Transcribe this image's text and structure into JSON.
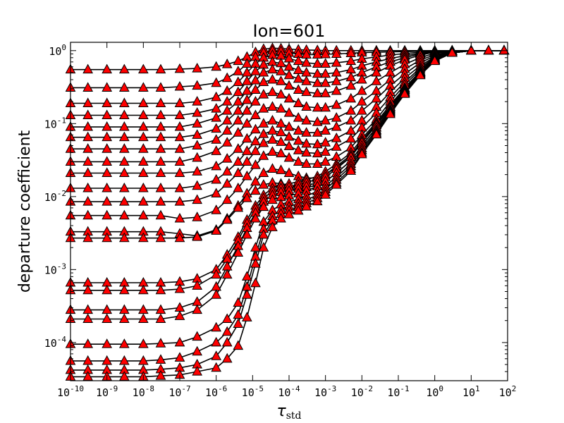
{
  "chart_data": {
    "type": "line",
    "title": "Ion=601",
    "xlabel": "τ",
    "xlabel_sub": "std",
    "ylabel": "departure coefficient",
    "xscale": "log",
    "yscale": "log",
    "xlim": [
      1e-10,
      100
    ],
    "ylim": [
      3e-05,
      1.3
    ],
    "x_tick_labels": [
      {
        "base": "10",
        "exp": "-10"
      },
      {
        "base": "10",
        "exp": "-9"
      },
      {
        "base": "10",
        "exp": "-8"
      },
      {
        "base": "10",
        "exp": "-7"
      },
      {
        "base": "10",
        "exp": "-6"
      },
      {
        "base": "10",
        "exp": "-5"
      },
      {
        "base": "10",
        "exp": "-4"
      },
      {
        "base": "10",
        "exp": "-3"
      },
      {
        "base": "10",
        "exp": "-2"
      },
      {
        "base": "10",
        "exp": "-1"
      },
      {
        "base": "10",
        "exp": "0"
      },
      {
        "base": "10",
        "exp": "1"
      },
      {
        "base": "10",
        "exp": "2"
      }
    ],
    "y_tick_labels": [
      {
        "base": "10",
        "exp": "0"
      },
      {
        "base": "10",
        "exp": "-1"
      },
      {
        "base": "10",
        "exp": "-2"
      },
      {
        "base": "10",
        "exp": "-3"
      },
      {
        "base": "10",
        "exp": "-4"
      }
    ],
    "grid": false,
    "legend": "none",
    "colors": {
      "marker_fill": "#ff0000",
      "line": "#000000"
    },
    "marker": "triangle",
    "x": [
      1e-10,
      3e-10,
      1e-09,
      3e-09,
      1e-08,
      3e-08,
      1e-07,
      3e-07,
      1e-06,
      2e-06,
      4e-06,
      7e-06,
      1.2e-05,
      2e-05,
      3.5e-05,
      6e-05,
      0.0001,
      0.00018,
      0.0003,
      0.0006,
      0.001,
      0.002,
      0.005,
      0.01,
      0.025,
      0.06,
      0.15,
      0.4,
      1,
      3,
      10,
      30,
      80
    ],
    "series": [
      {
        "values": [
          0.55,
          0.55,
          0.55,
          0.55,
          0.55,
          0.55,
          0.56,
          0.57,
          0.6,
          0.65,
          0.72,
          0.82,
          0.95,
          1.05,
          1.08,
          1.07,
          1.05,
          1.03,
          1.02,
          1.01,
          1.0,
          1.0,
          1.0,
          1.0,
          1.0,
          1.0,
          1.0,
          1.0,
          1.0,
          1.0,
          1.0,
          1.0,
          1.0
        ]
      },
      {
        "values": [
          0.31,
          0.31,
          0.31,
          0.31,
          0.31,
          0.31,
          0.32,
          0.33,
          0.36,
          0.42,
          0.52,
          0.66,
          0.82,
          0.95,
          1.0,
          0.98,
          0.93,
          0.9,
          0.88,
          0.88,
          0.89,
          0.9,
          0.92,
          0.94,
          0.95,
          0.96,
          0.97,
          0.98,
          0.99,
          1.0,
          1.0,
          1.0,
          1.0
        ]
      },
      {
        "values": [
          0.19,
          0.19,
          0.19,
          0.19,
          0.19,
          0.19,
          0.19,
          0.2,
          0.23,
          0.28,
          0.37,
          0.5,
          0.66,
          0.8,
          0.87,
          0.85,
          0.78,
          0.72,
          0.68,
          0.66,
          0.66,
          0.68,
          0.72,
          0.77,
          0.82,
          0.87,
          0.91,
          0.95,
          0.98,
          1.0,
          1.0,
          1.0,
          1.0
        ]
      },
      {
        "values": [
          0.13,
          0.13,
          0.13,
          0.13,
          0.13,
          0.13,
          0.13,
          0.14,
          0.16,
          0.2,
          0.27,
          0.38,
          0.52,
          0.64,
          0.7,
          0.67,
          0.6,
          0.54,
          0.5,
          0.48,
          0.48,
          0.5,
          0.55,
          0.62,
          0.7,
          0.78,
          0.85,
          0.92,
          0.97,
          1.0,
          1.0,
          1.0,
          1.0
        ]
      },
      {
        "values": [
          0.09,
          0.09,
          0.09,
          0.09,
          0.09,
          0.09,
          0.09,
          0.1,
          0.12,
          0.15,
          0.2,
          0.28,
          0.39,
          0.5,
          0.55,
          0.52,
          0.46,
          0.41,
          0.38,
          0.36,
          0.36,
          0.38,
          0.43,
          0.5,
          0.6,
          0.7,
          0.8,
          0.9,
          0.96,
          1.0,
          1.0,
          1.0,
          1.0
        ]
      },
      {
        "values": [
          0.065,
          0.065,
          0.065,
          0.065,
          0.065,
          0.065,
          0.065,
          0.07,
          0.085,
          0.11,
          0.15,
          0.21,
          0.29,
          0.37,
          0.4,
          0.38,
          0.33,
          0.29,
          0.27,
          0.26,
          0.26,
          0.28,
          0.33,
          0.4,
          0.5,
          0.62,
          0.75,
          0.87,
          0.95,
          0.99,
          1.0,
          1.0,
          1.0
        ]
      },
      {
        "values": [
          0.045,
          0.045,
          0.045,
          0.045,
          0.045,
          0.045,
          0.045,
          0.05,
          0.06,
          0.08,
          0.11,
          0.15,
          0.2,
          0.25,
          0.27,
          0.25,
          0.22,
          0.19,
          0.17,
          0.165,
          0.165,
          0.18,
          0.22,
          0.28,
          0.38,
          0.5,
          0.65,
          0.8,
          0.92,
          0.98,
          1.0,
          1.0,
          1.0
        ]
      },
      {
        "values": [
          0.03,
          0.03,
          0.03,
          0.03,
          0.03,
          0.03,
          0.03,
          0.034,
          0.042,
          0.055,
          0.075,
          0.1,
          0.13,
          0.16,
          0.17,
          0.16,
          0.14,
          0.12,
          0.11,
          0.105,
          0.11,
          0.12,
          0.15,
          0.2,
          0.28,
          0.4,
          0.56,
          0.74,
          0.88,
          0.97,
          1.0,
          1.0,
          1.0
        ]
      },
      {
        "values": [
          0.021,
          0.021,
          0.021,
          0.021,
          0.021,
          0.021,
          0.021,
          0.022,
          0.026,
          0.033,
          0.045,
          0.062,
          0.083,
          0.1,
          0.11,
          0.1,
          0.09,
          0.08,
          0.075,
          0.075,
          0.08,
          0.09,
          0.11,
          0.15,
          0.22,
          0.33,
          0.48,
          0.68,
          0.85,
          0.96,
          1.0,
          1.0,
          1.0
        ]
      },
      {
        "values": [
          0.013,
          0.013,
          0.013,
          0.013,
          0.013,
          0.013,
          0.013,
          0.014,
          0.017,
          0.022,
          0.03,
          0.042,
          0.057,
          0.072,
          0.08,
          0.076,
          0.066,
          0.058,
          0.053,
          0.052,
          0.055,
          0.063,
          0.08,
          0.11,
          0.17,
          0.27,
          0.42,
          0.62,
          0.82,
          0.95,
          1.0,
          1.0,
          1.0
        ]
      },
      {
        "values": [
          0.0085,
          0.0085,
          0.0085,
          0.0085,
          0.0085,
          0.0085,
          0.0085,
          0.009,
          0.011,
          0.015,
          0.021,
          0.03,
          0.042,
          0.054,
          0.06,
          0.056,
          0.049,
          0.043,
          0.04,
          0.039,
          0.041,
          0.048,
          0.062,
          0.088,
          0.14,
          0.23,
          0.37,
          0.58,
          0.8,
          0.95,
          1.0,
          1.0,
          1.0
        ]
      },
      {
        "values": [
          0.0055,
          0.0055,
          0.0055,
          0.0055,
          0.0055,
          0.0055,
          0.005,
          0.0052,
          0.0065,
          0.009,
          0.013,
          0.019,
          0.027,
          0.036,
          0.041,
          0.039,
          0.034,
          0.03,
          0.028,
          0.028,
          0.03,
          0.035,
          0.047,
          0.07,
          0.115,
          0.2,
          0.34,
          0.55,
          0.78,
          0.94,
          1.0,
          1.0,
          1.0
        ]
      },
      {
        "values": [
          0.0033,
          0.0033,
          0.0033,
          0.0033,
          0.0033,
          0.0033,
          0.0031,
          0.0029,
          0.0035,
          0.005,
          0.0075,
          0.011,
          0.016,
          0.021,
          0.024,
          0.023,
          0.021,
          0.019,
          0.018,
          0.018,
          0.02,
          0.025,
          0.035,
          0.055,
          0.095,
          0.17,
          0.3,
          0.52,
          0.76,
          0.93,
          1.0,
          1.0,
          1.0
        ]
      },
      {
        "values": [
          0.0027,
          0.0027,
          0.0027,
          0.0027,
          0.0027,
          0.0027,
          0.0027,
          0.0028,
          0.0034,
          0.0048,
          0.007,
          0.0095,
          0.012,
          0.0145,
          0.0155,
          0.015,
          0.014,
          0.0135,
          0.0135,
          0.014,
          0.016,
          0.021,
          0.031,
          0.05,
          0.088,
          0.16,
          0.29,
          0.5,
          0.75,
          0.93,
          1.0,
          1.0,
          1.0
        ]
      },
      {
        "values": [
          0.00066,
          0.00066,
          0.00066,
          0.00066,
          0.00066,
          0.00066,
          0.00068,
          0.00075,
          0.001,
          0.0016,
          0.0028,
          0.0048,
          0.0075,
          0.0105,
          0.013,
          0.0145,
          0.015,
          0.016,
          0.017,
          0.019,
          0.022,
          0.028,
          0.04,
          0.062,
          0.105,
          0.18,
          0.31,
          0.52,
          0.76,
          0.93,
          1.0,
          1.0,
          1.0
        ]
      },
      {
        "values": [
          0.00052,
          0.00052,
          0.00052,
          0.00052,
          0.00052,
          0.00052,
          0.00054,
          0.0006,
          0.00085,
          0.0014,
          0.0025,
          0.0043,
          0.0068,
          0.0095,
          0.0118,
          0.013,
          0.0136,
          0.0145,
          0.0155,
          0.0175,
          0.02,
          0.026,
          0.037,
          0.058,
          0.1,
          0.17,
          0.3,
          0.51,
          0.75,
          0.93,
          1.0,
          1.0,
          1.0
        ]
      },
      {
        "values": [
          0.00028,
          0.00028,
          0.00028,
          0.00028,
          0.00028,
          0.00028,
          0.0003,
          0.00036,
          0.00058,
          0.0011,
          0.0021,
          0.0037,
          0.006,
          0.0085,
          0.0105,
          0.0115,
          0.012,
          0.0128,
          0.0138,
          0.0158,
          0.0185,
          0.024,
          0.035,
          0.055,
          0.095,
          0.165,
          0.29,
          0.5,
          0.75,
          0.93,
          1.0,
          1.0,
          1.0
        ]
      },
      {
        "values": [
          0.00021,
          0.00021,
          0.00021,
          0.00021,
          0.00021,
          0.00021,
          0.00023,
          0.00028,
          0.00045,
          0.00085,
          0.0017,
          0.003,
          0.005,
          0.0072,
          0.009,
          0.0098,
          0.0103,
          0.011,
          0.012,
          0.0138,
          0.0162,
          0.021,
          0.031,
          0.05,
          0.088,
          0.155,
          0.28,
          0.49,
          0.74,
          0.93,
          1.0,
          1.0,
          1.0
        ]
      },
      {
        "values": [
          9.5e-05,
          9.5e-05,
          9.5e-05,
          9.5e-05,
          9.5e-05,
          9.7e-05,
          0.0001,
          0.00012,
          0.00016,
          0.00021,
          0.00035,
          0.0008,
          0.002,
          0.0045,
          0.0065,
          0.0078,
          0.0085,
          0.0092,
          0.0102,
          0.0118,
          0.014,
          0.0185,
          0.028,
          0.046,
          0.082,
          0.15,
          0.27,
          0.48,
          0.74,
          0.93,
          1.0,
          1.0,
          1.0
        ]
      },
      {
        "values": [
          5.6e-05,
          5.6e-05,
          5.6e-05,
          5.6e-05,
          5.6e-05,
          5.8e-05,
          6.2e-05,
          7.5e-05,
          0.0001,
          0.00014,
          0.00024,
          0.00058,
          0.0015,
          0.0036,
          0.0054,
          0.0066,
          0.0073,
          0.008,
          0.009,
          0.0105,
          0.0126,
          0.017,
          0.026,
          0.043,
          0.078,
          0.145,
          0.265,
          0.47,
          0.73,
          0.93,
          1.0,
          1.0,
          1.0
        ]
      },
      {
        "values": [
          4.2e-05,
          4.2e-05,
          4.2e-05,
          4.2e-05,
          4.2e-05,
          4.3e-05,
          4.5e-05,
          5e-05,
          6.5e-05,
          0.0001,
          0.00018,
          0.00045,
          0.0012,
          0.003,
          0.0047,
          0.0058,
          0.0065,
          0.0072,
          0.0081,
          0.0095,
          0.0115,
          0.0155,
          0.024,
          0.04,
          0.074,
          0.14,
          0.26,
          0.47,
          0.73,
          0.93,
          1.0,
          1.0,
          1.0
        ]
      },
      {
        "values": [
          3.4e-05,
          3.4e-05,
          3.4e-05,
          3.4e-05,
          3.4e-05,
          3.5e-05,
          3.6e-05,
          4e-05,
          4.5e-05,
          6e-05,
          9e-05,
          0.00022,
          0.00065,
          0.002,
          0.0038,
          0.005,
          0.0057,
          0.0064,
          0.0073,
          0.0086,
          0.0106,
          0.0145,
          0.0225,
          0.038,
          0.071,
          0.135,
          0.255,
          0.46,
          0.72,
          0.93,
          1.0,
          1.0,
          1.0
        ]
      }
    ]
  }
}
